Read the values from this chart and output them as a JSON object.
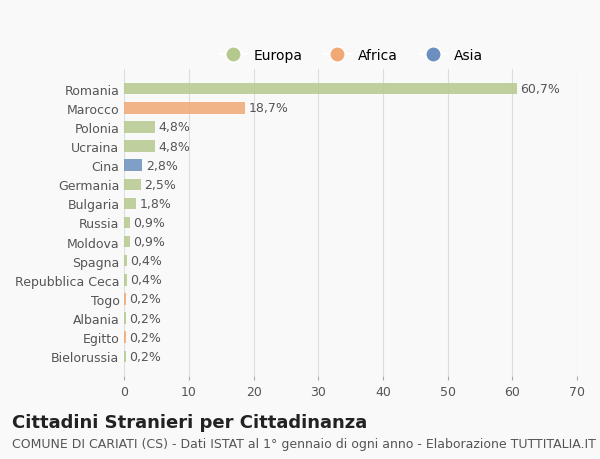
{
  "countries": [
    "Romania",
    "Marocco",
    "Polonia",
    "Ucraina",
    "Cina",
    "Germania",
    "Bulgaria",
    "Russia",
    "Moldova",
    "Spagna",
    "Repubblica Ceca",
    "Togo",
    "Albania",
    "Egitto",
    "Bielorussia"
  ],
  "values": [
    60.7,
    18.7,
    4.8,
    4.8,
    2.8,
    2.5,
    1.8,
    0.9,
    0.9,
    0.4,
    0.4,
    0.2,
    0.2,
    0.2,
    0.2
  ],
  "labels": [
    "60,7%",
    "18,7%",
    "4,8%",
    "4,8%",
    "2,8%",
    "2,5%",
    "1,8%",
    "0,9%",
    "0,9%",
    "0,4%",
    "0,4%",
    "0,2%",
    "0,2%",
    "0,2%",
    "0,2%"
  ],
  "continents": [
    "Europa",
    "Africa",
    "Europa",
    "Europa",
    "Asia",
    "Europa",
    "Europa",
    "Europa",
    "Europa",
    "Europa",
    "Europa",
    "Africa",
    "Europa",
    "Africa",
    "Europa"
  ],
  "colors": {
    "Europa": "#b5c98e",
    "Africa": "#f0a875",
    "Asia": "#6b8fbf"
  },
  "xlim": [
    0,
    70
  ],
  "xticks": [
    0,
    10,
    20,
    30,
    40,
    50,
    60,
    70
  ],
  "background_color": "#f9f9f9",
  "grid_color": "#dddddd",
  "title": "Cittadini Stranieri per Cittadinanza",
  "subtitle": "COMUNE DI CARIATI (CS) - Dati ISTAT al 1° gennaio di ogni anno - Elaborazione TUTTITALIA.IT",
  "title_fontsize": 13,
  "subtitle_fontsize": 9,
  "label_fontsize": 9,
  "tick_fontsize": 9,
  "legend_items": [
    "Europa",
    "Africa",
    "Asia"
  ],
  "legend_colors": [
    "#b5c98e",
    "#f0a875",
    "#6b8fbf"
  ]
}
